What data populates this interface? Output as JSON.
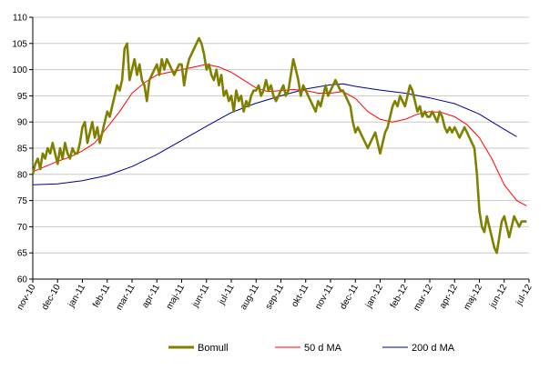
{
  "chart_data": {
    "type": "line",
    "title": "",
    "xlabel": "",
    "ylabel": "",
    "ylim": [
      60,
      110
    ],
    "yticks": [
      60,
      65,
      70,
      75,
      80,
      85,
      90,
      95,
      100,
      105,
      110
    ],
    "xticks": [
      "nov-10",
      "dec-10",
      "jan-11",
      "feb-11",
      "mar-11",
      "apr-11",
      "maj-11",
      "jun-11",
      "jul-11",
      "aug-11",
      "sep-11",
      "okt-11",
      "nov-11",
      "dec-11",
      "jan-12",
      "feb-12",
      "mar-12",
      "apr-12",
      "maj-12",
      "jun-12",
      "jul-12"
    ],
    "grid": "horizontal",
    "legend_position": "bottom",
    "x_units": "months since nov-10",
    "series": [
      {
        "name": "Bomull",
        "color": "#808000",
        "points": [
          [
            0.0,
            80
          ],
          [
            0.1,
            82
          ],
          [
            0.2,
            83
          ],
          [
            0.3,
            81
          ],
          [
            0.4,
            84
          ],
          [
            0.5,
            83
          ],
          [
            0.6,
            85
          ],
          [
            0.7,
            84
          ],
          [
            0.8,
            86
          ],
          [
            0.9,
            84
          ],
          [
            1.0,
            82
          ],
          [
            1.1,
            85
          ],
          [
            1.2,
            83
          ],
          [
            1.3,
            86
          ],
          [
            1.4,
            84
          ],
          [
            1.5,
            83
          ],
          [
            1.6,
            85
          ],
          [
            1.7,
            84
          ],
          [
            1.8,
            84
          ],
          [
            1.9,
            86
          ],
          [
            2.0,
            89
          ],
          [
            2.1,
            90
          ],
          [
            2.2,
            86
          ],
          [
            2.3,
            88
          ],
          [
            2.4,
            90
          ],
          [
            2.5,
            87
          ],
          [
            2.6,
            89
          ],
          [
            2.7,
            86
          ],
          [
            2.8,
            88
          ],
          [
            2.9,
            90
          ],
          [
            3.0,
            92
          ],
          [
            3.1,
            91
          ],
          [
            3.2,
            93
          ],
          [
            3.3,
            95
          ],
          [
            3.4,
            97
          ],
          [
            3.5,
            96
          ],
          [
            3.6,
            98
          ],
          [
            3.7,
            104
          ],
          [
            3.8,
            105
          ],
          [
            3.9,
            98
          ],
          [
            4.0,
            100
          ],
          [
            4.1,
            102
          ],
          [
            4.2,
            99
          ],
          [
            4.3,
            101
          ],
          [
            4.4,
            98
          ],
          [
            4.5,
            97
          ],
          [
            4.6,
            94
          ],
          [
            4.7,
            98
          ],
          [
            4.8,
            99
          ],
          [
            4.9,
            100
          ],
          [
            5.0,
            101
          ],
          [
            5.1,
            99
          ],
          [
            5.2,
            102
          ],
          [
            5.3,
            100
          ],
          [
            5.4,
            102
          ],
          [
            5.5,
            101
          ],
          [
            5.6,
            100
          ],
          [
            5.7,
            99
          ],
          [
            5.8,
            100
          ],
          [
            5.9,
            101
          ],
          [
            6.0,
            101
          ],
          [
            6.1,
            97
          ],
          [
            6.2,
            100
          ],
          [
            6.3,
            102
          ],
          [
            6.4,
            103
          ],
          [
            6.5,
            104
          ],
          [
            6.6,
            105
          ],
          [
            6.7,
            106
          ],
          [
            6.8,
            105
          ],
          [
            6.9,
            103
          ],
          [
            7.0,
            100
          ],
          [
            7.1,
            101
          ],
          [
            7.2,
            99
          ],
          [
            7.3,
            98
          ],
          [
            7.4,
            100
          ],
          [
            7.5,
            97
          ],
          [
            7.6,
            99
          ],
          [
            7.7,
            95
          ],
          [
            7.8,
            96
          ],
          [
            7.9,
            94
          ],
          [
            8.0,
            95
          ],
          [
            8.1,
            92
          ],
          [
            8.2,
            96
          ],
          [
            8.3,
            94
          ],
          [
            8.4,
            95
          ],
          [
            8.5,
            92
          ],
          [
            8.6,
            94
          ],
          [
            8.7,
            93
          ],
          [
            8.8,
            95
          ],
          [
            8.9,
            96
          ],
          [
            9.0,
            96
          ],
          [
            9.1,
            97
          ],
          [
            9.2,
            95
          ],
          [
            9.3,
            96
          ],
          [
            9.4,
            98
          ],
          [
            9.5,
            96
          ],
          [
            9.6,
            97
          ],
          [
            9.7,
            95
          ],
          [
            9.8,
            94
          ],
          [
            9.9,
            95
          ],
          [
            10.0,
            96
          ],
          [
            10.1,
            97
          ],
          [
            10.2,
            95
          ],
          [
            10.3,
            96
          ],
          [
            10.4,
            99
          ],
          [
            10.5,
            102
          ],
          [
            10.6,
            100
          ],
          [
            10.7,
            98
          ],
          [
            10.8,
            95
          ],
          [
            10.9,
            97
          ],
          [
            11.0,
            96
          ],
          [
            11.1,
            95
          ],
          [
            11.2,
            94
          ],
          [
            11.3,
            93
          ],
          [
            11.4,
            92
          ],
          [
            11.5,
            94
          ],
          [
            11.6,
            93
          ],
          [
            11.7,
            95
          ],
          [
            11.8,
            97
          ],
          [
            11.9,
            95
          ],
          [
            12.0,
            96
          ],
          [
            12.1,
            97
          ],
          [
            12.2,
            98
          ],
          [
            12.3,
            97
          ],
          [
            12.4,
            96
          ],
          [
            12.5,
            96
          ],
          [
            12.6,
            95
          ],
          [
            12.7,
            94
          ],
          [
            12.8,
            93
          ],
          [
            12.9,
            90
          ],
          [
            13.0,
            88
          ],
          [
            13.1,
            89
          ],
          [
            13.2,
            88
          ],
          [
            13.3,
            87
          ],
          [
            13.4,
            86
          ],
          [
            13.5,
            85
          ],
          [
            13.6,
            86
          ],
          [
            13.7,
            87
          ],
          [
            13.8,
            88
          ],
          [
            13.9,
            86
          ],
          [
            14.0,
            84
          ],
          [
            14.1,
            86
          ],
          [
            14.2,
            88
          ],
          [
            14.3,
            89
          ],
          [
            14.4,
            91
          ],
          [
            14.5,
            93
          ],
          [
            14.6,
            94
          ],
          [
            14.7,
            93
          ],
          [
            14.8,
            95
          ],
          [
            14.9,
            94
          ],
          [
            15.0,
            93
          ],
          [
            15.1,
            95
          ],
          [
            15.2,
            97
          ],
          [
            15.3,
            96
          ],
          [
            15.4,
            94
          ],
          [
            15.5,
            92
          ],
          [
            15.6,
            93
          ],
          [
            15.7,
            91
          ],
          [
            15.8,
            92
          ],
          [
            15.9,
            91
          ],
          [
            16.0,
            91
          ],
          [
            16.1,
            92
          ],
          [
            16.2,
            91
          ],
          [
            16.3,
            90
          ],
          [
            16.4,
            92
          ],
          [
            16.5,
            91
          ],
          [
            16.6,
            89
          ],
          [
            16.7,
            88
          ],
          [
            16.8,
            89
          ],
          [
            16.9,
            88
          ],
          [
            17.0,
            89
          ],
          [
            17.1,
            88
          ],
          [
            17.2,
            87
          ],
          [
            17.3,
            88
          ],
          [
            17.4,
            89
          ],
          [
            17.5,
            88
          ],
          [
            17.6,
            87
          ],
          [
            17.7,
            86
          ],
          [
            17.8,
            85
          ],
          [
            17.9,
            80
          ],
          [
            18.0,
            73
          ],
          [
            18.1,
            70
          ],
          [
            18.2,
            69
          ],
          [
            18.3,
            72
          ],
          [
            18.4,
            70
          ],
          [
            18.5,
            68
          ],
          [
            18.6,
            66
          ],
          [
            18.7,
            65
          ],
          [
            18.8,
            68
          ],
          [
            18.9,
            71
          ],
          [
            19.0,
            72
          ],
          [
            19.1,
            70
          ],
          [
            19.2,
            68
          ],
          [
            19.3,
            70
          ],
          [
            19.4,
            72
          ],
          [
            19.5,
            71
          ],
          [
            19.6,
            70
          ],
          [
            19.7,
            71
          ],
          [
            19.8,
            71
          ],
          [
            19.9,
            71
          ]
        ]
      },
      {
        "name": "50 d MA",
        "color": "#ff0000",
        "points": [
          [
            0.0,
            80.5
          ],
          [
            0.5,
            81.5
          ],
          [
            1.0,
            82.5
          ],
          [
            1.5,
            83.3
          ],
          [
            2.0,
            84.5
          ],
          [
            2.5,
            86
          ],
          [
            3.0,
            89
          ],
          [
            3.5,
            92
          ],
          [
            4.0,
            95.5
          ],
          [
            4.5,
            97.5
          ],
          [
            5.0,
            99
          ],
          [
            5.5,
            99.5
          ],
          [
            6.0,
            100
          ],
          [
            6.5,
            100.5
          ],
          [
            7.0,
            101
          ],
          [
            7.5,
            100.5
          ],
          [
            8.0,
            99.5
          ],
          [
            8.5,
            98
          ],
          [
            9.0,
            96.5
          ],
          [
            9.5,
            95.8
          ],
          [
            10.0,
            96
          ],
          [
            10.5,
            96.2
          ],
          [
            11.0,
            96
          ],
          [
            11.5,
            95.5
          ],
          [
            12.0,
            95.5
          ],
          [
            12.5,
            95.8
          ],
          [
            13.0,
            94.5
          ],
          [
            13.5,
            92
          ],
          [
            14.0,
            90.5
          ],
          [
            14.5,
            90
          ],
          [
            15.0,
            90.5
          ],
          [
            15.5,
            91.5
          ],
          [
            16.0,
            92
          ],
          [
            16.5,
            91.8
          ],
          [
            17.0,
            91
          ],
          [
            17.5,
            89.5
          ],
          [
            18.0,
            87
          ],
          [
            18.5,
            83
          ],
          [
            19.0,
            78
          ],
          [
            19.5,
            75
          ],
          [
            19.9,
            74
          ]
        ]
      },
      {
        "name": "200 d MA",
        "color": "#00008b",
        "points": [
          [
            0.0,
            78
          ],
          [
            1.0,
            78.2
          ],
          [
            2.0,
            78.8
          ],
          [
            3.0,
            79.8
          ],
          [
            4.0,
            81.5
          ],
          [
            5.0,
            83.8
          ],
          [
            6.0,
            86.5
          ],
          [
            7.0,
            89.2
          ],
          [
            8.0,
            91.8
          ],
          [
            9.0,
            93.6
          ],
          [
            10.0,
            95
          ],
          [
            11.0,
            96.3
          ],
          [
            12.0,
            97.1
          ],
          [
            12.5,
            97.3
          ],
          [
            13.0,
            96.8
          ],
          [
            14.0,
            96.1
          ],
          [
            15.0,
            95.5
          ],
          [
            16.0,
            94.6
          ],
          [
            17.0,
            93.5
          ],
          [
            18.0,
            91.5
          ],
          [
            19.0,
            88.6
          ],
          [
            19.5,
            87.2
          ]
        ]
      }
    ]
  }
}
